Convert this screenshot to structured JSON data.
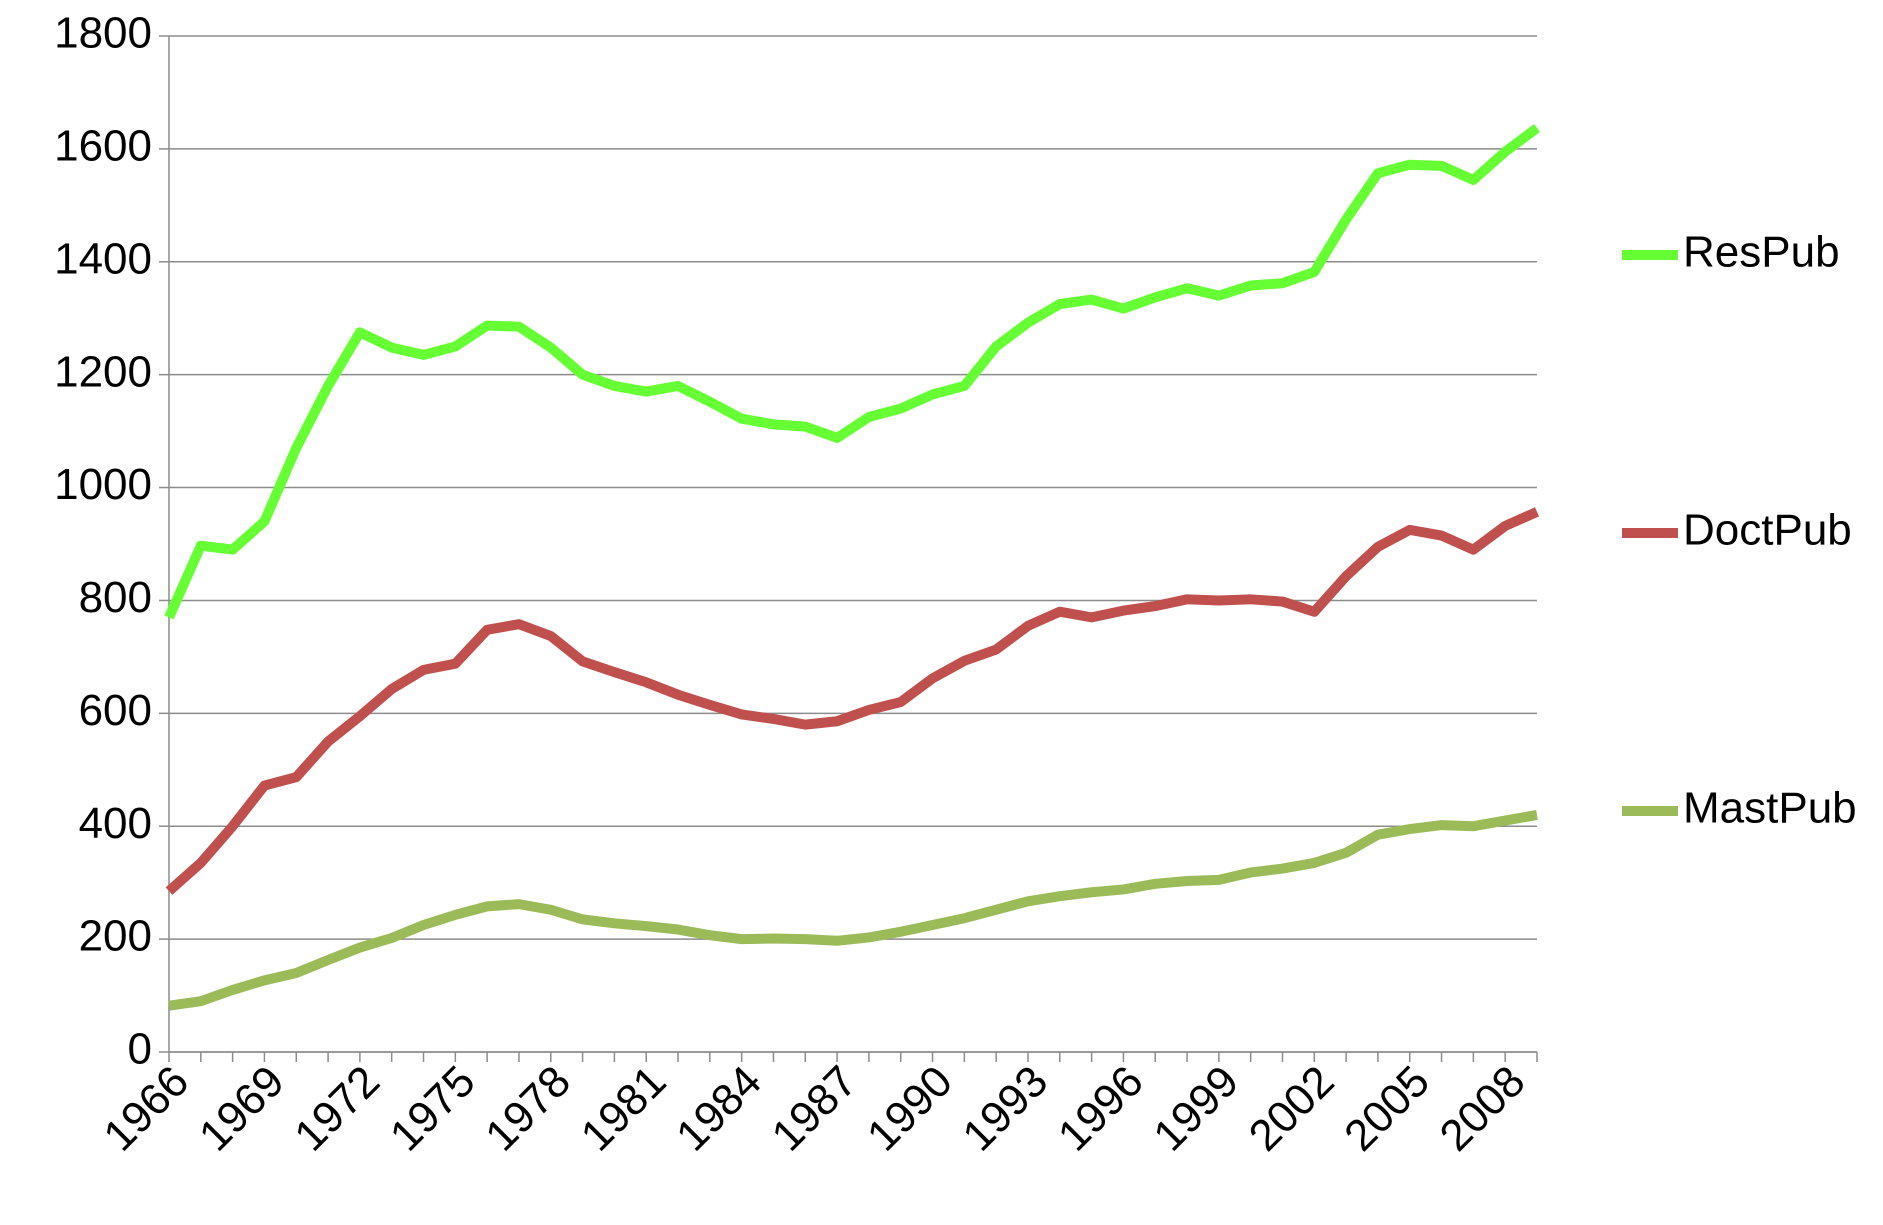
{
  "chart_data": {
    "type": "line",
    "categories": [
      "1966",
      null,
      null,
      "1969",
      null,
      null,
      "1972",
      null,
      null,
      "1975",
      null,
      null,
      "1978",
      null,
      null,
      "1981",
      null,
      null,
      "1984",
      null,
      null,
      "1987",
      null,
      null,
      "1990",
      null,
      null,
      "1993",
      null,
      null,
      "1996",
      null,
      null,
      "1999",
      null,
      null,
      "2002",
      null,
      null,
      "2005",
      null,
      null,
      "2008",
      null
    ],
    "series": [
      {
        "name": "ResPub",
        "color": "#66ff33",
        "values": [
          770,
          897,
          890,
          940,
          1070,
          1180,
          1275,
          1248,
          1235,
          1250,
          1287,
          1285,
          1248,
          1200,
          1180,
          1170,
          1180,
          1152,
          1122,
          1112,
          1108,
          1088,
          1125,
          1140,
          1165,
          1180,
          1250,
          1292,
          1325,
          1333,
          1317,
          1337,
          1353,
          1340,
          1358,
          1362,
          1382,
          1475,
          1557,
          1572,
          1570,
          1545,
          1595,
          1637
        ]
      },
      {
        "name": "DoctPub",
        "color": "#c0504d",
        "values": [
          285,
          335,
          400,
          472,
          487,
          550,
          595,
          643,
          677,
          688,
          748,
          758,
          737,
          692,
          673,
          655,
          633,
          615,
          598,
          590,
          580,
          586,
          606,
          620,
          662,
          693,
          713,
          755,
          780,
          770,
          782,
          790,
          802,
          800,
          802,
          798,
          780,
          843,
          895,
          925,
          915,
          890,
          932,
          957
        ]
      },
      {
        "name": "MastPub",
        "color": "#9bbb59",
        "values": [
          82,
          90,
          110,
          127,
          140,
          163,
          185,
          202,
          225,
          243,
          258,
          262,
          252,
          235,
          228,
          223,
          217,
          207,
          200,
          201,
          200,
          197,
          203,
          213,
          225,
          237,
          252,
          267,
          276,
          283,
          288,
          298,
          303,
          305,
          318,
          325,
          335,
          353,
          385,
          395,
          402,
          400,
          410,
          420
        ]
      }
    ],
    "ylim": [
      0,
      1800
    ],
    "yticks": [
      0,
      200,
      400,
      600,
      800,
      1000,
      1200,
      1400,
      1600,
      1800
    ],
    "grid": true,
    "legend": "right"
  }
}
